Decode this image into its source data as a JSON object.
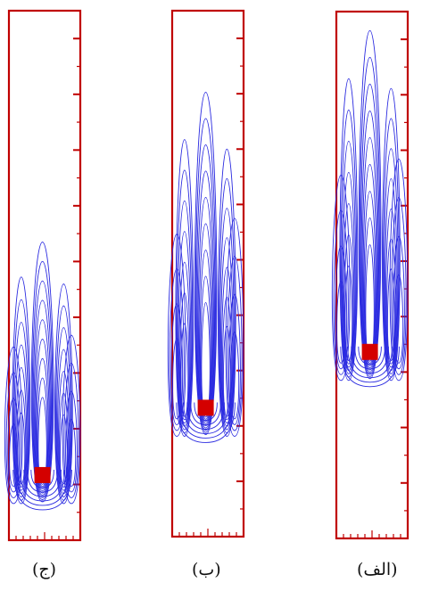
{
  "captions": {
    "c": "(ج)",
    "b": "(ب)",
    "a": "(الف)"
  },
  "colors": {
    "frame": "#c00000",
    "contour": "#2a2ae0",
    "block": "#d40000",
    "background": "#ffffff"
  },
  "panels": [
    {
      "id": "c",
      "block_level": 0.123,
      "plume_height": 0.44
    },
    {
      "id": "b",
      "block_level": 0.245,
      "plume_height": 0.6
    },
    {
      "id": "a",
      "block_level": 0.354,
      "plume_height": 0.61
    }
  ]
}
